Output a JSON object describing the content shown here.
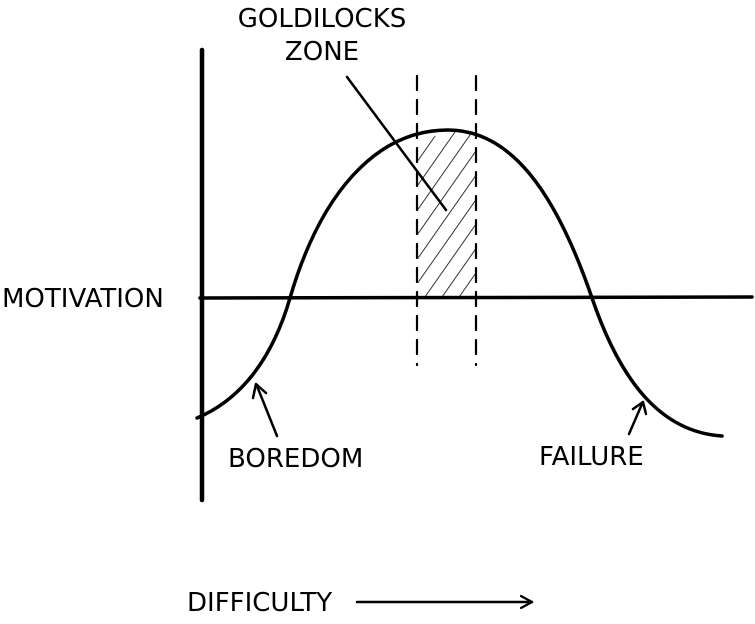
{
  "labels": {
    "zone_line1": "GOLDILOCKS",
    "zone_line2": "ZONE",
    "y_axis": "MOTIVATION",
    "boredom": "BOREDOM",
    "failure": "FAILURE",
    "x_axis": "DIFFICULTY"
  },
  "colors": {
    "ink": "#000000",
    "background": "#ffffff"
  }
}
